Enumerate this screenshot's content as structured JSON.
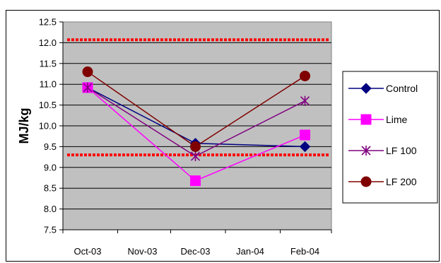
{
  "chart_data": {
    "type": "line",
    "title": "",
    "xlabel": "",
    "ylabel": "MJ/kg",
    "categories": [
      "Oct-03",
      "Nov-03",
      "Dec-03",
      "Jan-04",
      "Feb-04"
    ],
    "ylim": [
      7.5,
      12.5
    ],
    "y_ticks": [
      "12.5",
      "12.0",
      "11.5",
      "11.0",
      "10.5",
      "10.0",
      "9.5",
      "9.0",
      "8.5",
      "8.0",
      "7.5"
    ],
    "x_values": [
      "2003-10-15",
      "2003-12-15",
      "2004-02-15"
    ],
    "grid": true,
    "plot_background": "#c0c0c0",
    "legend_position": "right",
    "series": [
      {
        "name": "Control",
        "color": "#000080",
        "marker": "diamond",
        "values": [
          10.92,
          9.58,
          9.5
        ]
      },
      {
        "name": "Lime",
        "color": "#ff00ff",
        "marker": "square",
        "values": [
          10.92,
          8.68,
          9.78
        ]
      },
      {
        "name": "LF 100",
        "color": "#800080",
        "marker": "asterisk",
        "values": [
          10.92,
          9.27,
          10.6
        ]
      },
      {
        "name": "LF 200",
        "color": "#800000",
        "marker": "circle",
        "values": [
          11.3,
          9.5,
          11.2
        ]
      }
    ],
    "reference_lines": [
      {
        "value": 12.07,
        "color": "#ff0000",
        "style": "dotted"
      },
      {
        "value": 9.3,
        "color": "#ff0000",
        "style": "dotted"
      }
    ]
  }
}
